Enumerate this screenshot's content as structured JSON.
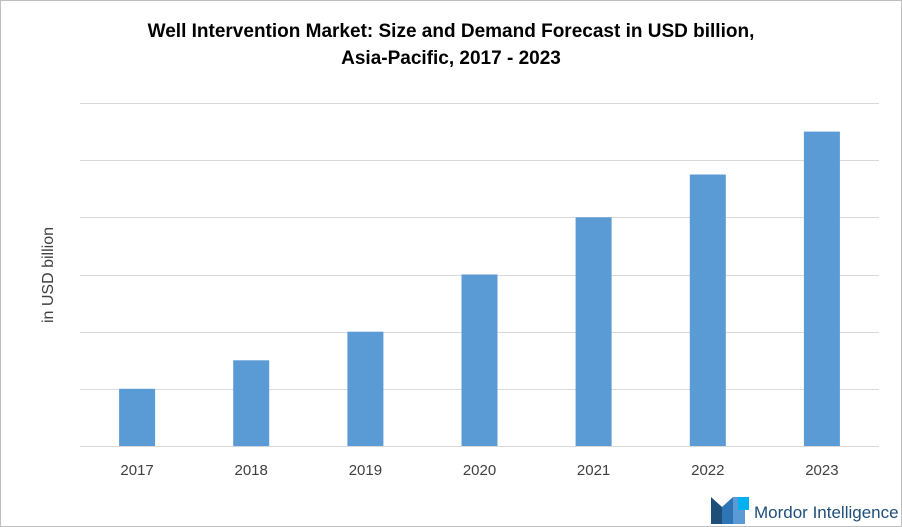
{
  "chart_data": {
    "type": "bar",
    "title_line1": "Well Intervention Market: Size and Demand Forecast in USD billion,",
    "title_line2": "Asia-Pacific, 2017 - 2023",
    "ylabel": "in USD billion",
    "xlabel": "",
    "categories": [
      "2017",
      "2018",
      "2019",
      "2020",
      "2021",
      "2022",
      "2023"
    ],
    "values": [
      1,
      1.5,
      2,
      3,
      4,
      4.75,
      5.5
    ],
    "ylim": [
      0,
      6
    ],
    "gridlines": [
      0,
      1,
      2,
      3,
      4,
      5,
      6
    ],
    "grid": true,
    "bar_color": "#5b9bd5",
    "grid_color": "#d9d9d9"
  },
  "branding": {
    "name": "Mordor Intelligence",
    "logo_icon": "mordor-logo-icon",
    "colors": [
      "#1f4e79",
      "#2e75b6",
      "#5b9bd5",
      "#00b0f0"
    ]
  }
}
